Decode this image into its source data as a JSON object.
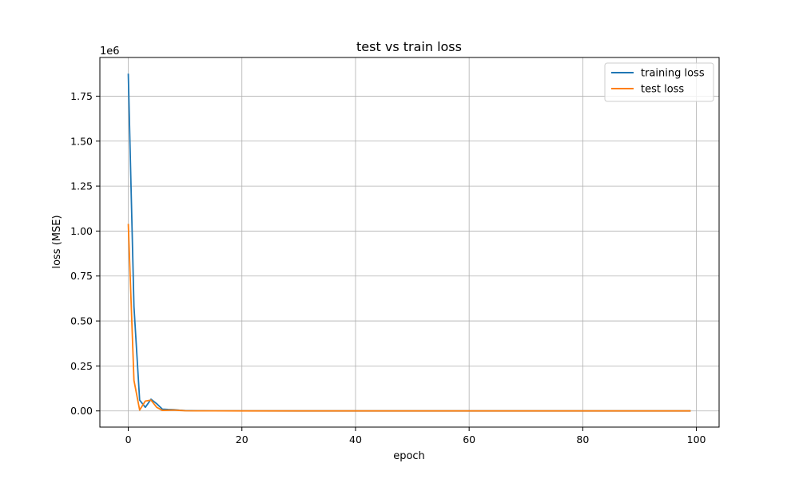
{
  "colors": {
    "training": "#1f77b4",
    "test": "#ff7f0e",
    "grid": "#b0b0b0",
    "axis": "#000000"
  },
  "chart_data": {
    "type": "line",
    "title": "test vs train loss",
    "xlabel": "epoch",
    "ylabel": "loss (MSE)",
    "y_offset_text": "1e6",
    "xlim": [
      -5,
      104
    ],
    "ylim": [
      -0.09,
      1.965
    ],
    "y_scale_multiplier": 1000000,
    "xticks": [
      0,
      20,
      40,
      60,
      80,
      100
    ],
    "xtick_labels": [
      "0",
      "20",
      "40",
      "60",
      "80",
      "100"
    ],
    "yticks": [
      0.0,
      0.25,
      0.5,
      0.75,
      1.0,
      1.25,
      1.5,
      1.75
    ],
    "ytick_labels": [
      "0.00",
      "0.25",
      "0.50",
      "0.75",
      "1.00",
      "1.25",
      "1.50",
      "1.75"
    ],
    "grid": true,
    "legend_position": "top-right",
    "series": [
      {
        "name": "training loss",
        "color_key": "training",
        "x": [
          0,
          1,
          2,
          3,
          4,
          5,
          6,
          7,
          8,
          9,
          10,
          12,
          15,
          20,
          30,
          40,
          50,
          60,
          70,
          80,
          90,
          99
        ],
        "values": [
          1.875,
          0.58,
          0.06,
          0.02,
          0.065,
          0.04,
          0.01,
          0.008,
          0.007,
          0.004,
          0.002,
          0.001,
          0.0005,
          0.0003,
          0.0002,
          0.0001,
          0.0001,
          0.0001,
          0.0001,
          0.0001,
          0.0001,
          0.0001
        ]
      },
      {
        "name": "test loss",
        "color_key": "test",
        "x": [
          0,
          1,
          2,
          3,
          4,
          5,
          6,
          7,
          8,
          9,
          10,
          12,
          15,
          20,
          30,
          40,
          50,
          60,
          70,
          80,
          90,
          99
        ],
        "values": [
          1.04,
          0.17,
          0.005,
          0.055,
          0.06,
          0.02,
          0.003,
          0.004,
          0.005,
          0.003,
          0.001,
          0.0005,
          0.0003,
          0.0002,
          0.0001,
          0.0001,
          0.0001,
          0.0001,
          0.0001,
          0.0001,
          0.0001,
          0.0001
        ]
      }
    ]
  }
}
